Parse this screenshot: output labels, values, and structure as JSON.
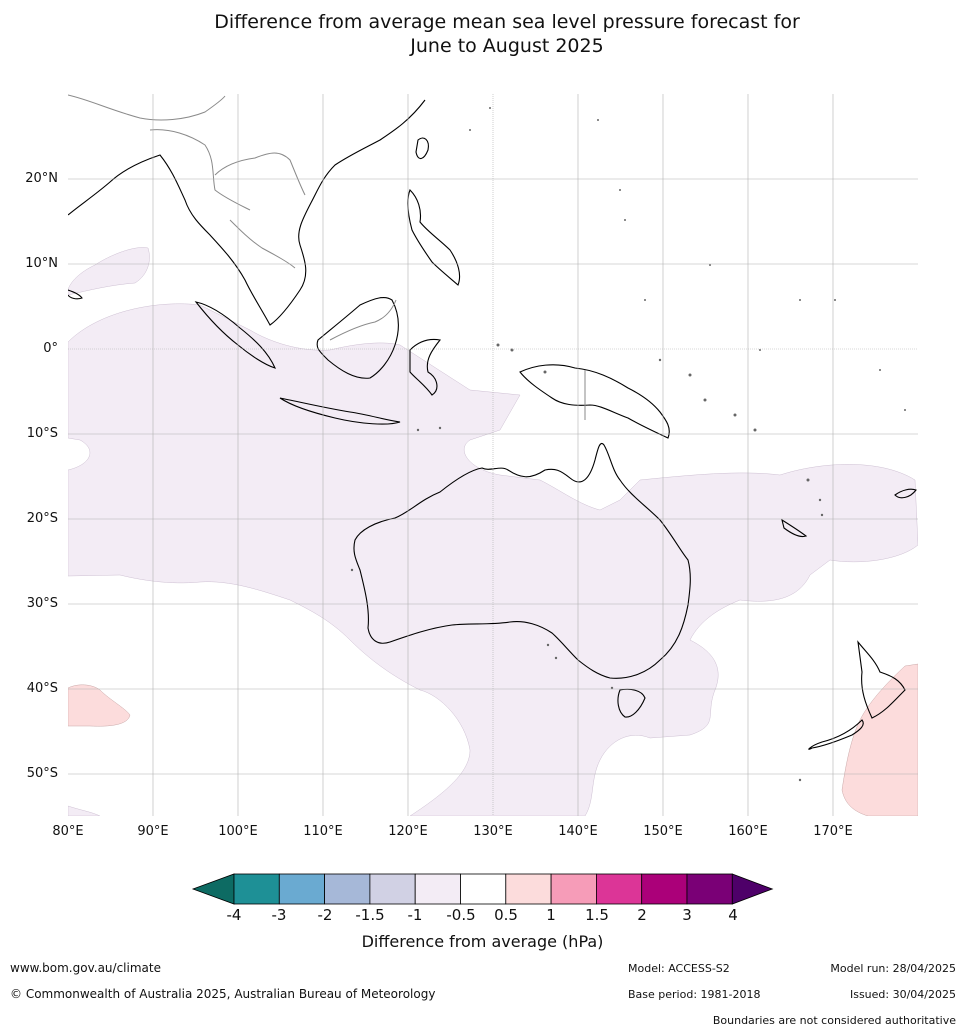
{
  "title_line1": "Difference from average mean sea level pressure forecast for",
  "title_line2": "June to August 2025",
  "map": {
    "lat_labels": [
      "20°N",
      "10°N",
      "0°",
      "10°S",
      "20°S",
      "30°S",
      "40°S",
      "50°S"
    ],
    "lon_labels": [
      "80°E",
      "90°E",
      "100°E",
      "110°E",
      "120°E",
      "130°E",
      "140°E",
      "150°E",
      "160°E",
      "170°E"
    ],
    "region_colors": {
      "neg_0_5_to_1": "#f3ecf5",
      "pos_0_5_to_1": "#fcdcdc",
      "land_outline": "#000000",
      "border": "#8a8a8a",
      "grid": "#b0b0b0"
    }
  },
  "colorbar": {
    "ticks": [
      "-4",
      "-3",
      "-2",
      "-1.5",
      "-1",
      "-0.5",
      "0.5",
      "1",
      "1.5",
      "2",
      "3",
      "4"
    ],
    "colors": [
      "#0d6b63",
      "#1e9096",
      "#6aaad1",
      "#a6b8d8",
      "#d1d1e4",
      "#f3ecf5",
      "#ffffff",
      "#fcdcdc",
      "#f69cb8",
      "#dc3597",
      "#ab0079",
      "#7a0076",
      "#4e0069"
    ],
    "label": "Difference from average (hPa)"
  },
  "footer": {
    "url": "www.bom.gov.au/climate",
    "copyright": "© Commonwealth of Australia 2025, Australian Bureau of Meteorology",
    "model": "Model: ACCESS-S2",
    "base_period": "Base period: 1981-2018",
    "model_run": "Model run: 28/04/2025",
    "issued": "Issued: 30/04/2025",
    "disclaimer": "Boundaries are not considered authoritative"
  }
}
